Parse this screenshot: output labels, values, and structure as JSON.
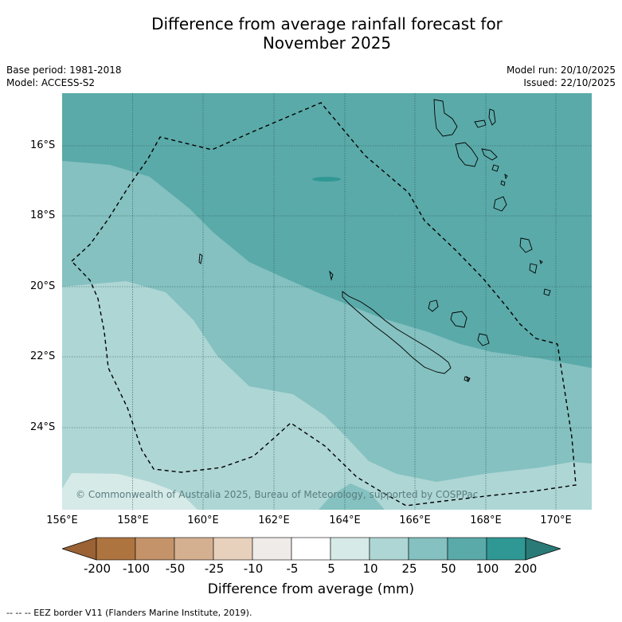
{
  "title_line1": "Difference from average rainfall forecast for",
  "title_line2": "November 2025",
  "meta": {
    "base_period": "Base period: 1981-2018",
    "model": "Model: ACCESS-S2",
    "model_run": "Model run: 20/10/2025",
    "issued": "Issued: 22/10/2025"
  },
  "map": {
    "lat_labels": [
      "16°S",
      "18°S",
      "20°S",
      "22°S",
      "24°S"
    ],
    "lon_labels": [
      "156°E",
      "158°E",
      "160°E",
      "162°E",
      "164°E",
      "166°E",
      "168°E",
      "170°E"
    ],
    "copyright": "© Commonwealth of Australia 2025, Bureau of Meteorology, supported by COSPPac",
    "colors": {
      "band_100": "#5aaaa9",
      "band_50": "#84c1c0",
      "band_25": "#aed6d5",
      "band_10": "#d6eae8"
    }
  },
  "colorbar": {
    "labels": [
      "-200",
      "-100",
      "-50",
      "-25",
      "-10",
      "-5",
      "5",
      "10",
      "25",
      "50",
      "100",
      "200"
    ],
    "colors": [
      "#ae7440",
      "#c49369",
      "#d4b091",
      "#e7d1bc",
      "#efebe8",
      "#ffffff",
      "#d6eae8",
      "#aed6d5",
      "#84c1c0",
      "#5aaaa9",
      "#309894"
    ],
    "under_color": "#9a6235",
    "over_color": "#2a7a77",
    "title": "Difference from average (mm)"
  },
  "footer_note": "--  --  -- EEZ border V11 (Flanders Marine Institute, 2019)."
}
